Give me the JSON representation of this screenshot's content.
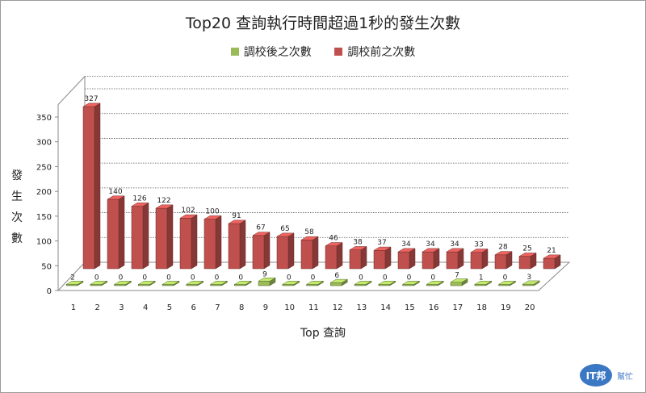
{
  "chart_data": {
    "type": "bar",
    "title": "Top20 查詢執行時間超過1秒的發生次數",
    "xlabel": "Top 查詢",
    "ylabel": "發生次數",
    "categories": [
      "1",
      "2",
      "3",
      "4",
      "5",
      "6",
      "7",
      "8",
      "9",
      "10",
      "11",
      "12",
      "13",
      "14",
      "15",
      "16",
      "17",
      "18",
      "19",
      "20"
    ],
    "series": [
      {
        "name": "調校後之次數",
        "color": "#9bbb59",
        "values": [
          2,
          0,
          0,
          0,
          0,
          0,
          0,
          0,
          9,
          0,
          0,
          6,
          0,
          0,
          0,
          0,
          7,
          1,
          0,
          3
        ]
      },
      {
        "name": "調校前之次數",
        "color": "#c0504d",
        "values": [
          327,
          140,
          126,
          122,
          102,
          100,
          91,
          67,
          65,
          58,
          46,
          38,
          37,
          34,
          34,
          34,
          33,
          28,
          25,
          21
        ]
      }
    ],
    "yticks": [
      0,
      50,
      100,
      150,
      200,
      250,
      300,
      350
    ],
    "ylim": [
      0,
      350
    ],
    "grid": true,
    "legend_position": "top"
  },
  "watermark": {
    "brand": "IT邦",
    "sub": "幫忙"
  }
}
